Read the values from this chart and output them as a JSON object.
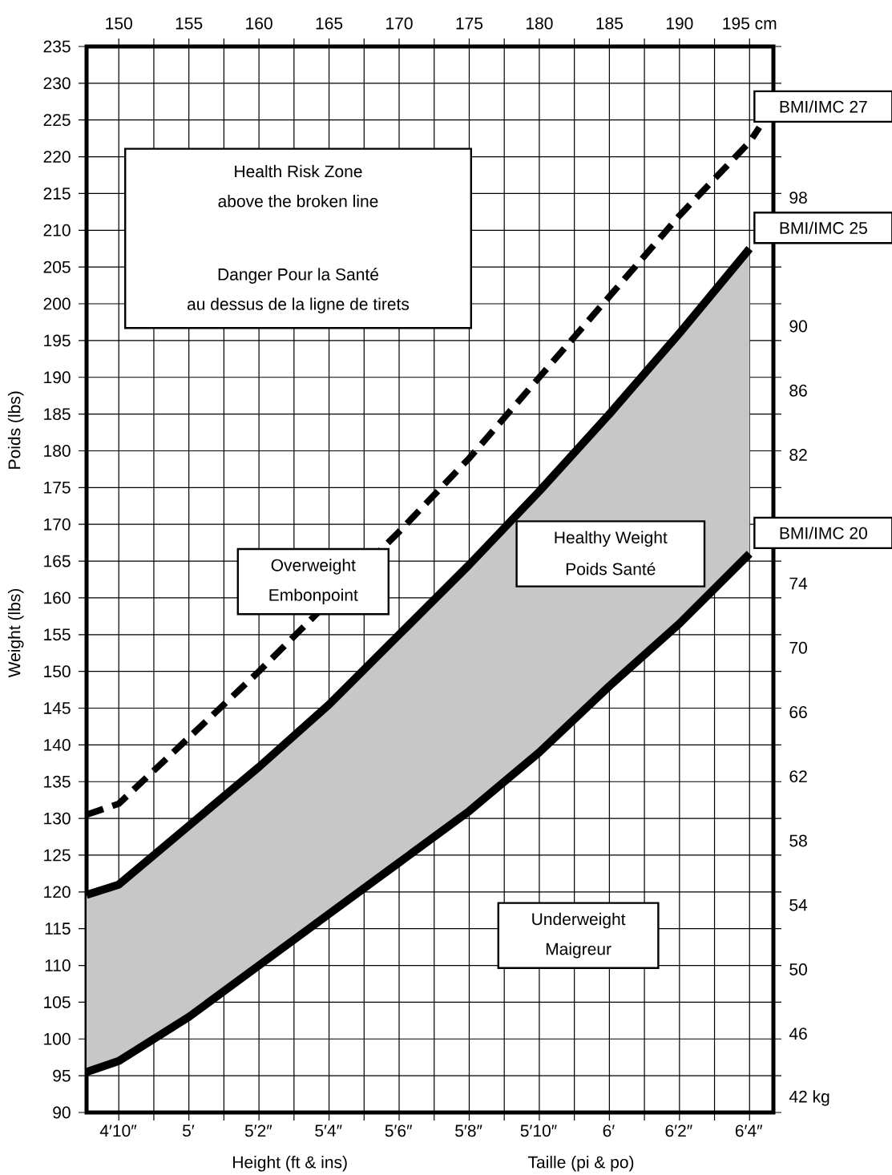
{
  "chart_data": {
    "type": "line",
    "xlabel": "Height (ft & ins)",
    "ylabel": "Weight (lbs)",
    "xlim": [
      147.7,
      196.7
    ],
    "ylim": [
      90,
      235
    ],
    "xticks": [
      150,
      155,
      160,
      165,
      170,
      175,
      180,
      185,
      190,
      {
        "value": 195,
        "label": "195 cm"
      }
    ],
    "yticks": [
      90,
      95,
      100,
      105,
      110,
      115,
      120,
      125,
      130,
      135,
      140,
      145,
      150,
      155,
      160,
      165,
      170,
      175,
      180,
      185,
      190,
      195,
      200,
      205,
      210,
      215,
      220,
      225,
      230,
      235
    ],
    "x2lim": [
      4.758,
      6.392
    ],
    "x2ticks": [
      {
        "value": 4.8333,
        "label": "4′10″"
      },
      {
        "value": 5,
        "label": "5′"
      },
      {
        "value": 5.1667,
        "label": "5′2″"
      },
      {
        "value": 5.3333,
        "label": "5′4″"
      },
      {
        "value": 5.5,
        "label": "5′6″"
      },
      {
        "value": 5.6667,
        "label": "5′8″"
      },
      {
        "value": 5.8333,
        "label": "5′10″"
      },
      {
        "value": 6,
        "label": "6′"
      },
      {
        "value": 6.1667,
        "label": "6′2″"
      },
      {
        "value": 6.3333,
        "label": "6′4″"
      }
    ],
    "y2lim": [
      41.1,
      107.4
    ],
    "y2ticks": [
      {
        "value": 42,
        "label": "42 kg"
      },
      46,
      50,
      54,
      58,
      62,
      66,
      70,
      74,
      82,
      86,
      90,
      98
    ],
    "grid": true,
    "legend": "right",
    "series": [
      {
        "name": "BMI/IMC 27",
        "color": "#000000",
        "line_style": "dashed",
        "x": [
          147.7,
          150,
          155,
          160,
          165,
          170,
          175,
          180,
          185,
          190,
          195,
          195.7
        ],
        "values": [
          130.5,
          132,
          141,
          150,
          null,
          169,
          179,
          190,
          201,
          212,
          222,
          224
        ]
      },
      {
        "name": "BMI/IMC 25",
        "color": "#000000",
        "line_style": "solid",
        "x": [
          147.7,
          150,
          155,
          160,
          165,
          170,
          175,
          180,
          185,
          190,
          195
        ],
        "values": [
          119.6,
          121,
          129,
          137,
          145.5,
          155,
          164.5,
          174.5,
          185,
          196,
          207.5
        ],
        "lower": [
          95.5,
          97,
          103,
          110,
          117,
          124,
          131,
          139,
          148,
          156.5,
          166
        ],
        "upper": [
          119.6,
          121,
          129,
          137,
          145.5,
          155,
          164.5,
          174.5,
          185,
          196,
          207.5
        ]
      },
      {
        "name": "BMI/IMC 20",
        "color": "#000000",
        "line_style": "solid",
        "x": [
          147.7,
          150,
          155,
          160,
          165,
          170,
          175,
          180,
          185,
          190,
          195
        ],
        "values": [
          95.5,
          97,
          103,
          110,
          117,
          124,
          131,
          139,
          148,
          156.5,
          166
        ]
      }
    ],
    "annotations": [
      "Poids (lbs)",
      "Taille (pi & po)",
      "Health Risk Zone",
      "above the broken line",
      "Danger Pour la Santé",
      "au dessus de la ligne de tirets",
      "Overweight",
      "Embonpoint",
      "Healthy Weight",
      "Poids Santé",
      "Underweight",
      "Maigreur"
    ]
  }
}
